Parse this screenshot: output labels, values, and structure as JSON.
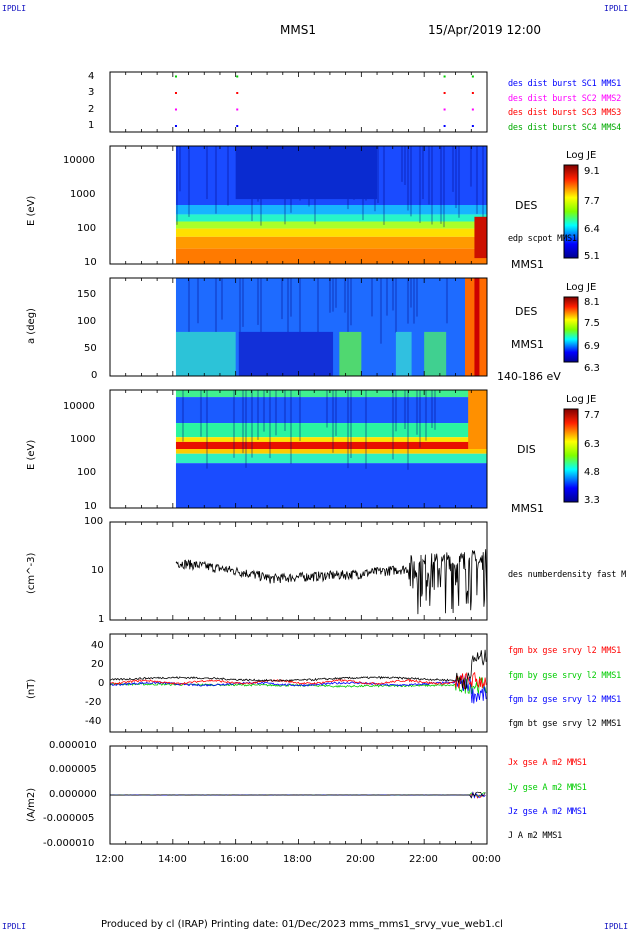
{
  "header": {
    "corner_tl": "IPDLI",
    "corner_tr": "IPDLI",
    "corner_bl": "IPDLI",
    "corner_br": "IPDLI",
    "spacecraft": "MMS1",
    "datetime": "15/Apr/2019 12:00"
  },
  "footer": {
    "text": "Produced by cl (IRAP)   Printing date: 01/Dec/2023   mms_mms1_srvy_vue_web1.cl"
  },
  "chart_data": [
    {
      "type": "scatter",
      "panel": "burst availability",
      "y_ticks": [
        "4",
        "3",
        "2",
        "1"
      ],
      "legend": [
        {
          "name": "des dist burst SC1 MMS1",
          "color": "#0000ff"
        },
        {
          "name": "des dist burst SC2 MMS2",
          "color": "#ff00ff"
        },
        {
          "name": "des dist burst SC3 MMS3",
          "color": "#ff0000"
        },
        {
          "name": "des dist burst SC4 MMS4",
          "color": "#00cc00"
        }
      ],
      "burst_times_h": [
        14.1,
        16.05,
        22.65,
        23.55
      ]
    },
    {
      "type": "heatmap",
      "panel": "DES energy spectrogram",
      "ylabel": "E (eV)",
      "y_scale": "log",
      "y_ticks": [
        "10000",
        "1000",
        "100",
        "10"
      ],
      "side_labels": [
        "DES",
        "edp scpot MMS1",
        "MMS1"
      ],
      "colorbar": {
        "title": "Log JE",
        "ticks": [
          "9.1",
          "7.7",
          "6.4",
          "5.1"
        ]
      }
    },
    {
      "type": "heatmap",
      "panel": "DES pitch angle",
      "ylabel": "a (deg)",
      "y_ticks": [
        "150",
        "100",
        "50",
        "0"
      ],
      "side_labels": [
        "DES",
        "MMS1",
        "140-186 eV"
      ],
      "colorbar": {
        "title": "Log JE",
        "ticks": [
          "8.1",
          "7.5",
          "6.9",
          "6.3"
        ]
      }
    },
    {
      "type": "heatmap",
      "panel": "DIS energy spectrogram",
      "ylabel": "E (eV)",
      "y_scale": "log",
      "y_ticks": [
        "10000",
        "1000",
        "100",
        "10"
      ],
      "side_labels": [
        "DIS",
        "MMS1"
      ],
      "colorbar": {
        "title": "Log JE",
        "ticks": [
          "7.7",
          "6.3",
          "4.8",
          "3.3"
        ]
      }
    },
    {
      "type": "line",
      "panel": "density",
      "ylabel": "(cm^-3)",
      "y_scale": "log",
      "y_ticks": [
        "100",
        "10",
        "1"
      ],
      "legend": [
        {
          "name": "des numberdensity fast M",
          "color": "#000000"
        }
      ]
    },
    {
      "type": "line",
      "panel": "magnetic field",
      "ylabel": "(nT)",
      "y_ticks": [
        "40",
        "20",
        "0",
        "-20",
        "-40"
      ],
      "ylim": [
        -50,
        50
      ],
      "legend": [
        {
          "name": "fgm bx gse srvy l2 MMS1",
          "color": "#ff0000"
        },
        {
          "name": "fgm by gse srvy l2 MMS1",
          "color": "#00cc00"
        },
        {
          "name": "fgm bz gse srvy l2 MMS1",
          "color": "#0000ff"
        },
        {
          "name": "fgm bt gse srvy l2 MMS1",
          "color": "#000000"
        }
      ]
    },
    {
      "type": "line",
      "panel": "current density",
      "ylabel": "(A/m2)",
      "y_ticks": [
        "0.000010",
        "0.000005",
        "0.000000",
        "-0.000005",
        "-0.000010"
      ],
      "ylim": [
        -1e-05,
        1e-05
      ],
      "legend": [
        {
          "name": "Jx gse A m2 MMS1",
          "color": "#ff0000"
        },
        {
          "name": "Jy gse A m2 MMS1",
          "color": "#00cc00"
        },
        {
          "name": "Jz gse A m2 MMS1",
          "color": "#0000ff"
        },
        {
          "name": "J A m2 MMS1",
          "color": "#000000"
        }
      ],
      "x_ticks": [
        "12:00",
        "14:00",
        "16:00",
        "18:00",
        "20:00",
        "22:00",
        "00:00"
      ]
    }
  ]
}
